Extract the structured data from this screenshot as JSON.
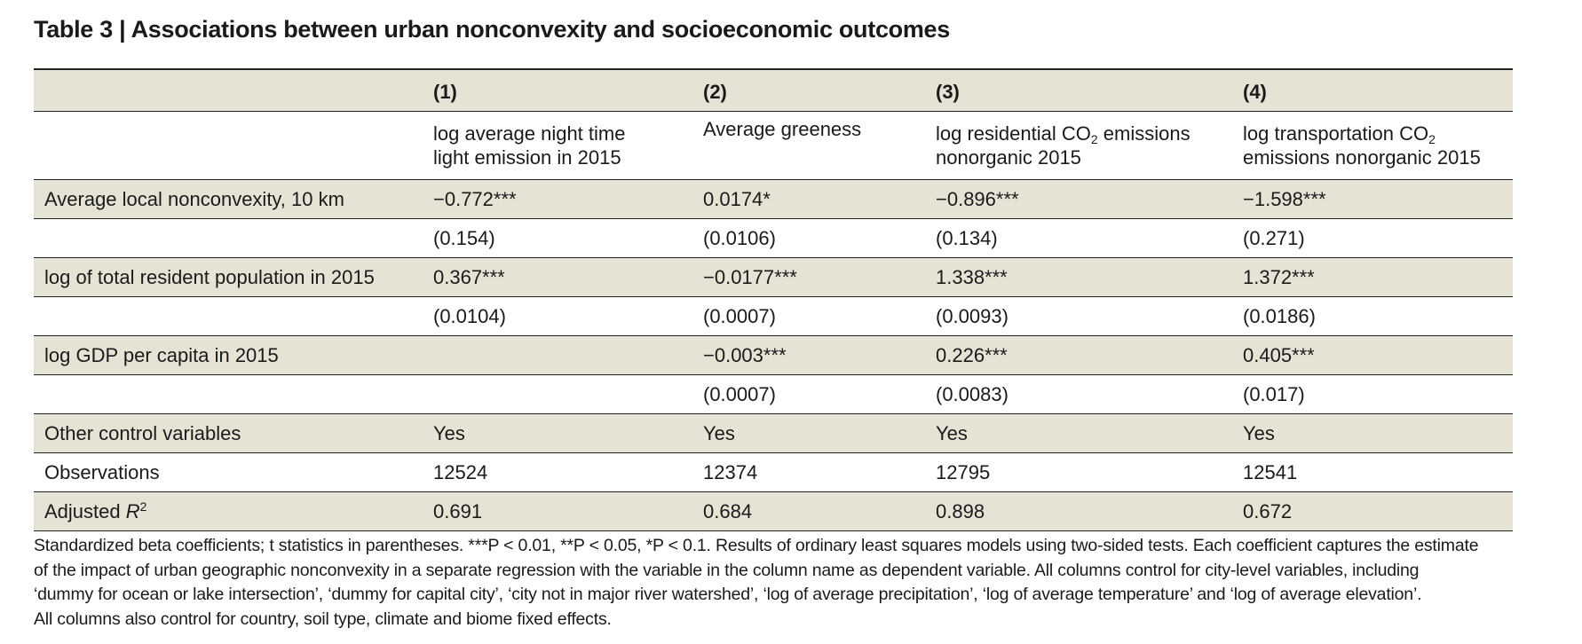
{
  "title": "Table 3 | Associations between urban nonconvexity and socioeconomic outcomes",
  "table": {
    "column_numbers": [
      "(1)",
      "(2)",
      "(3)",
      "(4)"
    ],
    "dependent_variables": [
      {
        "line1": "log average night time",
        "line2": "light emission in 2015"
      },
      {
        "line1": "Average greeness",
        "line2": ""
      },
      {
        "line1_pre": "log residential CO",
        "line1_sub": "2",
        "line1_post": " emissions",
        "line2": "nonorganic 2015"
      },
      {
        "line1_pre": "log transportation CO",
        "line1_sub": "2",
        "line1_post": "",
        "line2": "emissions nonorganic 2015"
      }
    ],
    "rows": [
      {
        "label": "Average local nonconvexity, 10 km",
        "values": [
          "−0.772***",
          "0.0174*",
          "−0.896***",
          "−1.598***"
        ]
      },
      {
        "label": "",
        "values": [
          "(0.154)",
          "(0.0106)",
          "(0.134)",
          "(0.271)"
        ]
      },
      {
        "label": "log of total resident population in 2015",
        "values": [
          "0.367***",
          "−0.0177***",
          "1.338***",
          "1.372***"
        ]
      },
      {
        "label": "",
        "values": [
          "(0.0104)",
          "(0.0007)",
          "(0.0093)",
          "(0.0186)"
        ]
      },
      {
        "label": "log GDP per capita in 2015",
        "values": [
          "",
          "−0.003***",
          "0.226***",
          "0.405***"
        ]
      },
      {
        "label": "",
        "values": [
          "",
          "(0.0007)",
          "(0.0083)",
          "(0.017)"
        ]
      },
      {
        "label": "Other control variables",
        "values": [
          "Yes",
          "Yes",
          "Yes",
          "Yes"
        ]
      },
      {
        "label": "Observations",
        "values": [
          "12524",
          "12374",
          "12795",
          "12541"
        ]
      }
    ],
    "adjusted_r2": {
      "label_pre": "Adjusted ",
      "label_italic": "R",
      "label_sup": "2",
      "values": [
        "0.691",
        "0.684",
        "0.898",
        "0.672"
      ]
    }
  },
  "footnote": {
    "lines": [
      "Standardized beta coefficients; t statistics in parentheses. ***P < 0.01, **P < 0.05, *P < 0.1. Results of ordinary least squares models using two-sided tests. Each coefficient captures the estimate",
      "of the impact of urban geographic nonconvexity in a separate regression with the variable in the column name as dependent variable. All columns control for city-level variables, including",
      "‘dummy for ocean or lake intersection’, ‘dummy for capital city’, ‘city not in major river watershed’, ‘log of average precipitation’, ‘log of average temperature’ and ‘log of average elevation’.",
      "All columns also control for country, soil type, climate and biome fixed effects."
    ]
  }
}
